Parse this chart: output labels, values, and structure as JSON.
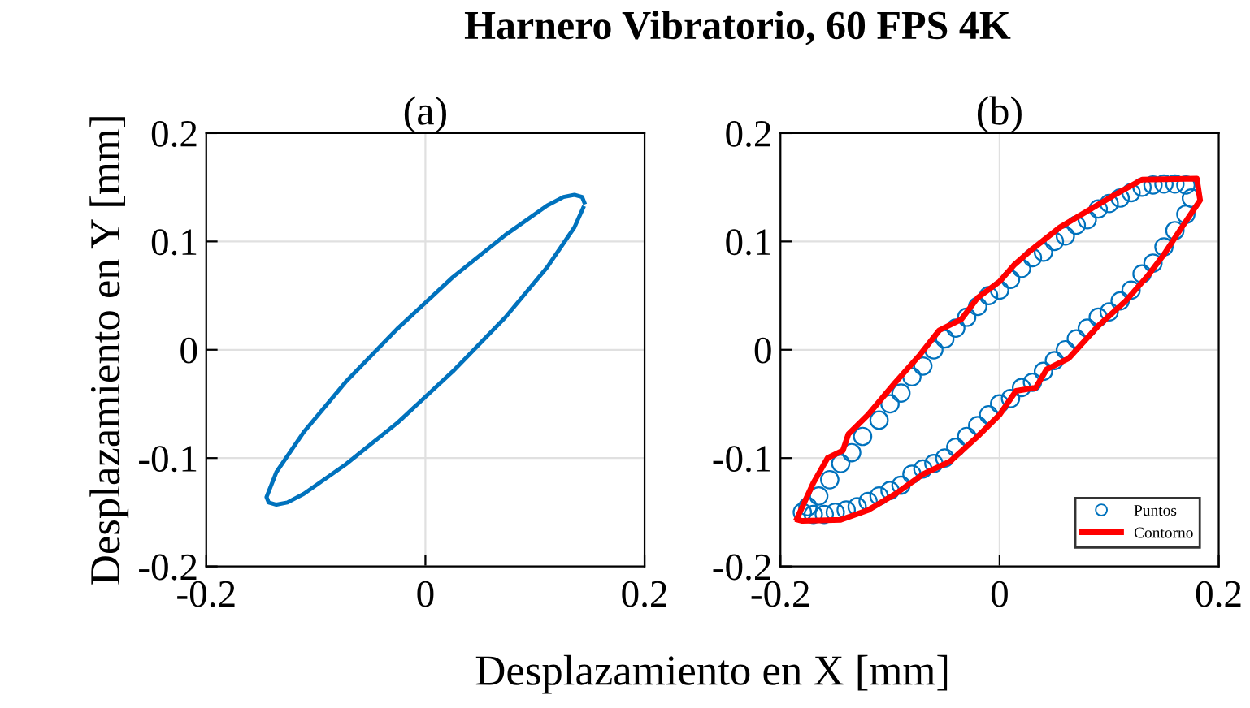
{
  "chart_data": [
    {
      "type": "line",
      "title": "(a)",
      "ylabel": "Desplazamiento en Y [mm]",
      "xlabel": "Desplazamiento en X [mm]",
      "annotations": [
        "Harnero Vibratorio, 60 FPS 4K"
      ],
      "series": [
        {
          "color": "#0072bd",
          "x": [
            0.145,
            0.143,
            0.136,
            0.126,
            0.111,
            0.073,
            0.025,
            -0.025,
            -0.073,
            -0.111,
            -0.136,
            -0.145,
            -0.143,
            -0.136,
            -0.126,
            -0.111,
            -0.073,
            -0.025,
            0.025,
            0.073,
            0.111,
            0.136,
            0.144
          ],
          "values": [
            0.136,
            0.141,
            0.143,
            0.141,
            0.133,
            0.106,
            0.067,
            0.02,
            -0.03,
            -0.076,
            -0.113,
            -0.136,
            -0.141,
            -0.143,
            -0.141,
            -0.133,
            -0.106,
            -0.067,
            -0.02,
            0.03,
            0.076,
            0.113,
            0.131
          ]
        }
      ],
      "xlim": [
        -0.2,
        0.2
      ],
      "xticks": [
        -0.2,
        0,
        0.2
      ],
      "ylim": [
        -0.2,
        0.2
      ],
      "yticks": [
        -0.2,
        -0.1,
        0,
        0.1,
        0.2
      ],
      "grid": true,
      "legend": false,
      "line_style": "solid",
      "marker": "none"
    },
    {
      "type": "scatter",
      "title": "(b)",
      "series": [
        {
          "name": "Puntos",
          "type": "scatter",
          "color": "#0072bd",
          "marker": "circle",
          "x": [
            -0.175,
            -0.165,
            -0.155,
            -0.145,
            -0.135,
            -0.125,
            -0.11,
            -0.1,
            -0.09,
            -0.08,
            -0.07,
            -0.06,
            -0.05,
            -0.04,
            -0.03,
            -0.02,
            -0.01,
            0.0,
            0.01,
            0.02,
            0.03,
            0.04,
            0.05,
            0.06,
            0.07,
            0.08,
            0.09,
            0.1,
            0.11,
            0.12,
            0.13,
            0.14,
            0.15,
            0.16,
            0.17,
            0.175,
            0.17,
            0.16,
            0.15,
            0.14,
            0.13,
            0.12,
            0.11,
            0.1,
            0.09,
            0.08,
            0.07,
            0.06,
            0.05,
            0.04,
            0.03,
            0.02,
            0.01,
            0.0,
            -0.01,
            -0.02,
            -0.03,
            -0.04,
            -0.05,
            -0.06,
            -0.07,
            -0.08,
            -0.09,
            -0.1,
            -0.11,
            -0.12,
            -0.13,
            -0.14,
            -0.15,
            -0.16,
            -0.17,
            -0.18
          ],
          "values": [
            -0.145,
            -0.135,
            -0.12,
            -0.105,
            -0.095,
            -0.08,
            -0.065,
            -0.05,
            -0.04,
            -0.025,
            -0.015,
            0.0,
            0.01,
            0.02,
            0.03,
            0.04,
            0.05,
            0.055,
            0.065,
            0.075,
            0.085,
            0.09,
            0.1,
            0.105,
            0.115,
            0.12,
            0.13,
            0.135,
            0.14,
            0.145,
            0.15,
            0.152,
            0.153,
            0.153,
            0.152,
            0.14,
            0.125,
            0.11,
            0.095,
            0.08,
            0.07,
            0.055,
            0.045,
            0.035,
            0.03,
            0.02,
            0.01,
            0.0,
            -0.01,
            -0.02,
            -0.03,
            -0.035,
            -0.045,
            -0.05,
            -0.06,
            -0.07,
            -0.08,
            -0.09,
            -0.1,
            -0.105,
            -0.11,
            -0.115,
            -0.125,
            -0.13,
            -0.135,
            -0.14,
            -0.145,
            -0.148,
            -0.15,
            -0.152,
            -0.152,
            -0.15
          ]
        },
        {
          "name": "Contorno",
          "type": "line",
          "color": "#ff0000",
          "line_style": "solid",
          "x": [
            -0.185,
            -0.17,
            -0.157,
            -0.143,
            -0.138,
            -0.12,
            -0.095,
            -0.073,
            -0.055,
            -0.035,
            -0.02,
            0.0,
            0.013,
            0.03,
            0.055,
            0.08,
            0.105,
            0.13,
            0.18,
            0.183,
            0.165,
            0.15,
            0.135,
            0.115,
            0.09,
            0.063,
            0.043,
            0.033,
            0.015,
            0.0,
            -0.02,
            -0.045,
            -0.07,
            -0.095,
            -0.12,
            -0.145,
            -0.18,
            -0.184
          ],
          "values": [
            -0.156,
            -0.123,
            -0.1,
            -0.093,
            -0.078,
            -0.06,
            -0.03,
            -0.005,
            0.018,
            0.028,
            0.048,
            0.063,
            0.078,
            0.093,
            0.113,
            0.128,
            0.143,
            0.157,
            0.158,
            0.138,
            0.111,
            0.088,
            0.068,
            0.045,
            0.022,
            -0.008,
            -0.018,
            -0.035,
            -0.038,
            -0.06,
            -0.08,
            -0.103,
            -0.115,
            -0.133,
            -0.148,
            -0.157,
            -0.158,
            -0.157
          ]
        }
      ],
      "xlim": [
        -0.2,
        0.2
      ],
      "xticks": [
        -0.2,
        0,
        0.2
      ],
      "ylim": [
        -0.2,
        0.2
      ],
      "yticks": [
        -0.2,
        -0.1,
        0,
        0.1,
        0.2
      ],
      "grid": true,
      "legend": "bottom right"
    }
  ]
}
